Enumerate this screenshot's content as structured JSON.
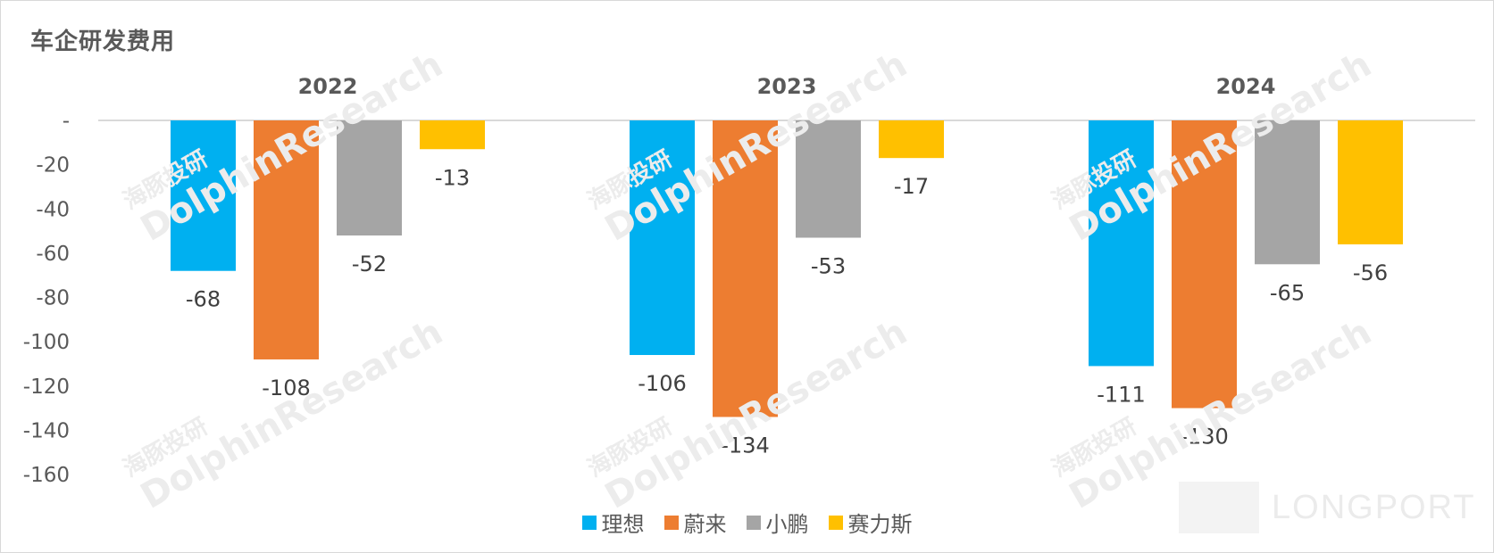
{
  "title": "车企研发费用",
  "chart_data": {
    "type": "bar",
    "title": "车企研发费用",
    "categories": [
      "2022",
      "2023",
      "2024"
    ],
    "series": [
      {
        "name": "理想",
        "color": "#00b0f0",
        "values": [
          -68,
          -106,
          -111
        ]
      },
      {
        "name": "蔚来",
        "color": "#ed7d31",
        "values": [
          -108,
          -134,
          -130
        ]
      },
      {
        "name": "小鹏",
        "color": "#a5a5a5",
        "values": [
          -52,
          -53,
          -65
        ]
      },
      {
        "name": "赛力斯",
        "color": "#ffc000",
        "values": [
          -13,
          -17,
          -56
        ]
      }
    ],
    "ylim": [
      -160,
      0
    ],
    "yticks": [
      0,
      -20,
      -40,
      -60,
      -80,
      -100,
      -120,
      -140,
      -160
    ],
    "ytick_labels": [
      "-",
      "-20",
      "-40",
      "-60",
      "-80",
      "-100",
      "-120",
      "-140",
      "-160"
    ],
    "legend_position": "bottom",
    "grid": false
  },
  "watermark": {
    "cn": "海豚投研",
    "en": "DolphinResearch"
  },
  "logo_text": "LONGPORT"
}
